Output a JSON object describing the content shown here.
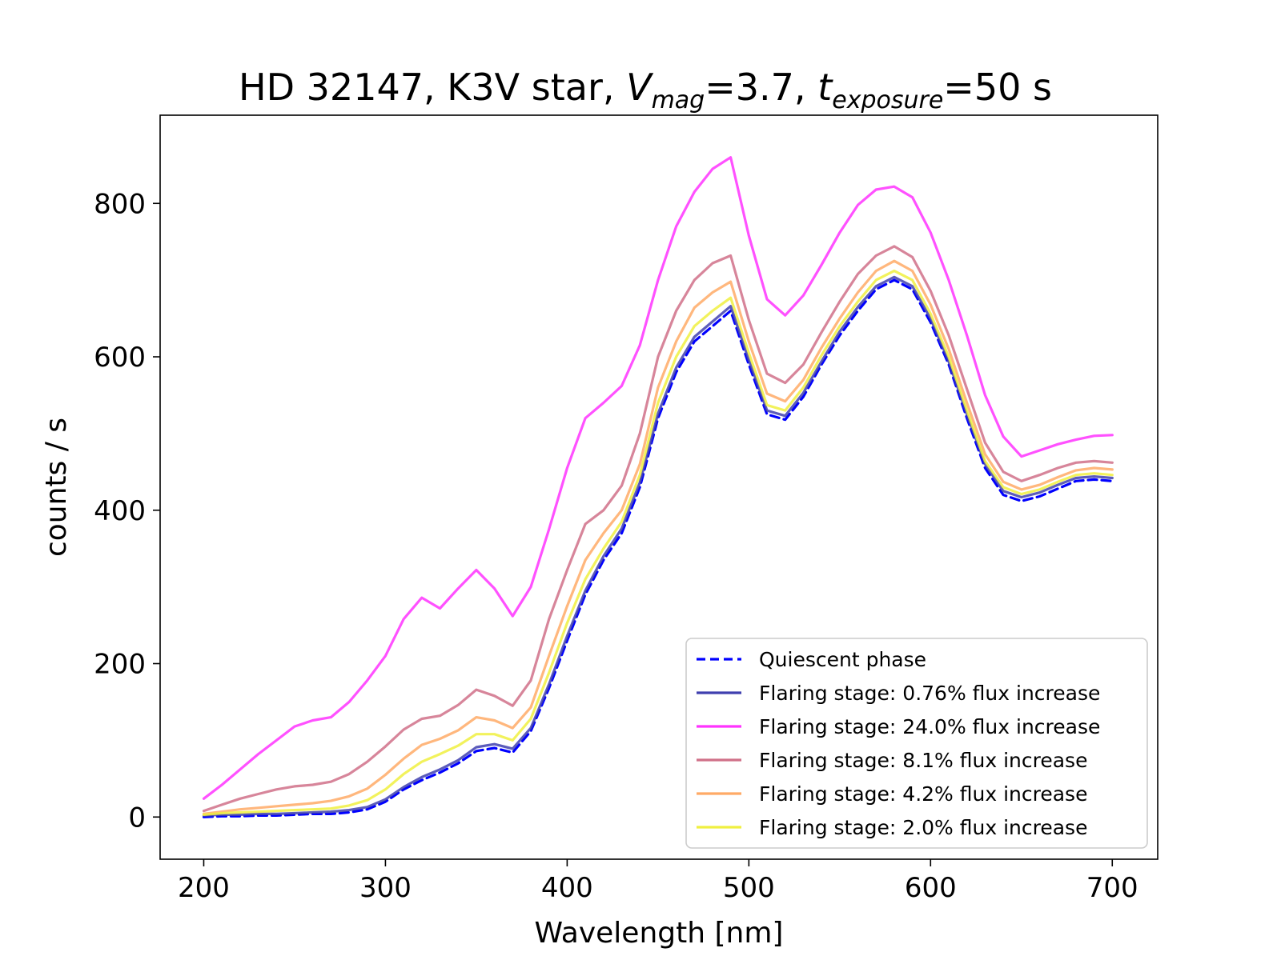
{
  "chart_data": {
    "type": "line",
    "title": {
      "prefix": "HD 32147, K3V star, ",
      "v_symbol": "V",
      "v_subscript": "mag",
      "v_value": "=3.7, ",
      "t_symbol": "t",
      "t_subscript": "exposure",
      "t_value": "=50 s"
    },
    "xlabel": "Wavelength [nm]",
    "ylabel": "counts / s",
    "xlim": [
      176,
      725
    ],
    "ylim": [
      -55,
      915
    ],
    "xticks": [
      200,
      300,
      400,
      500,
      600,
      700
    ],
    "yticks": [
      0,
      200,
      400,
      600,
      800
    ],
    "grid": false,
    "legend_position": "lower-right",
    "x": [
      200,
      210,
      220,
      230,
      240,
      250,
      260,
      270,
      280,
      290,
      300,
      310,
      320,
      330,
      340,
      350,
      360,
      370,
      380,
      390,
      400,
      410,
      420,
      430,
      440,
      450,
      460,
      470,
      480,
      490,
      500,
      510,
      520,
      530,
      540,
      550,
      560,
      570,
      580,
      590,
      600,
      610,
      620,
      630,
      640,
      650,
      660,
      670,
      680,
      690,
      700
    ],
    "series": [
      {
        "name": "Quiescent phase",
        "color": "#0000ff",
        "style": "dashed",
        "values": [
          0,
          1,
          1,
          2,
          2,
          3,
          4,
          4,
          6,
          10,
          20,
          36,
          48,
          58,
          70,
          86,
          90,
          84,
          112,
          168,
          230,
          290,
          335,
          370,
          430,
          520,
          580,
          620,
          640,
          660,
          590,
          525,
          518,
          548,
          590,
          628,
          660,
          688,
          700,
          688,
          645,
          590,
          520,
          455,
          420,
          412,
          418,
          428,
          438,
          440,
          438
        ]
      },
      {
        "name": "Flaring stage: 0.76% flux increase",
        "color": "#3f3faf",
        "style": "solid",
        "values": [
          2,
          3,
          3,
          4,
          4,
          5,
          6,
          7,
          9,
          13,
          23,
          39,
          52,
          62,
          74,
          91,
          95,
          89,
          116,
          173,
          236,
          295,
          340,
          376,
          436,
          526,
          586,
          626,
          646,
          666,
          596,
          530,
          523,
          553,
          594,
          633,
          665,
          692,
          704,
          692,
          650,
          594,
          525,
          460,
          425,
          417,
          423,
          433,
          442,
          444,
          442
        ]
      },
      {
        "name": "Flaring stage: 24.0% flux increase",
        "color": "#ff33ff",
        "style": "solid",
        "values": [
          24,
          42,
          62,
          82,
          100,
          118,
          126,
          130,
          150,
          178,
          210,
          258,
          286,
          272,
          298,
          322,
          298,
          262,
          300,
          375,
          455,
          520,
          540,
          562,
          615,
          700,
          770,
          815,
          845,
          860,
          758,
          675,
          654,
          680,
          720,
          762,
          798,
          818,
          822,
          808,
          762,
          700,
          628,
          550,
          496,
          470,
          478,
          486,
          492,
          497,
          498
        ]
      },
      {
        "name": "Flaring stage: 8.1% flux increase",
        "color": "#d07088",
        "style": "solid",
        "values": [
          8,
          16,
          24,
          30,
          36,
          40,
          42,
          46,
          56,
          72,
          92,
          114,
          128,
          132,
          146,
          166,
          158,
          145,
          178,
          258,
          322,
          382,
          400,
          432,
          500,
          600,
          660,
          700,
          722,
          732,
          648,
          578,
          566,
          590,
          632,
          672,
          708,
          732,
          744,
          730,
          686,
          628,
          558,
          488,
          450,
          438,
          446,
          455,
          462,
          464,
          462
        ]
      },
      {
        "name": "Flaring stage: 4.2% flux increase",
        "color": "#ffaa66",
        "style": "solid",
        "values": [
          4,
          7,
          10,
          12,
          14,
          16,
          18,
          21,
          27,
          37,
          55,
          76,
          94,
          102,
          113,
          130,
          126,
          116,
          143,
          210,
          275,
          335,
          370,
          400,
          460,
          560,
          620,
          664,
          684,
          698,
          620,
          552,
          542,
          570,
          612,
          650,
          684,
          712,
          725,
          712,
          668,
          610,
          540,
          473,
          437,
          427,
          433,
          443,
          452,
          455,
          453
        ]
      },
      {
        "name": "Flaring stage: 2.0% flux increase",
        "color": "#f0f040",
        "style": "solid",
        "values": [
          3,
          5,
          6,
          7,
          8,
          9,
          10,
          11,
          15,
          22,
          36,
          56,
          72,
          82,
          93,
          108,
          108,
          100,
          128,
          188,
          253,
          310,
          350,
          385,
          446,
          540,
          600,
          640,
          660,
          677,
          605,
          537,
          530,
          560,
          602,
          640,
          672,
          700,
          712,
          700,
          656,
          600,
          530,
          464,
          430,
          421,
          427,
          437,
          446,
          448,
          446
        ]
      }
    ],
    "legend_order": [
      0,
      1,
      2,
      3,
      4,
      5
    ]
  }
}
